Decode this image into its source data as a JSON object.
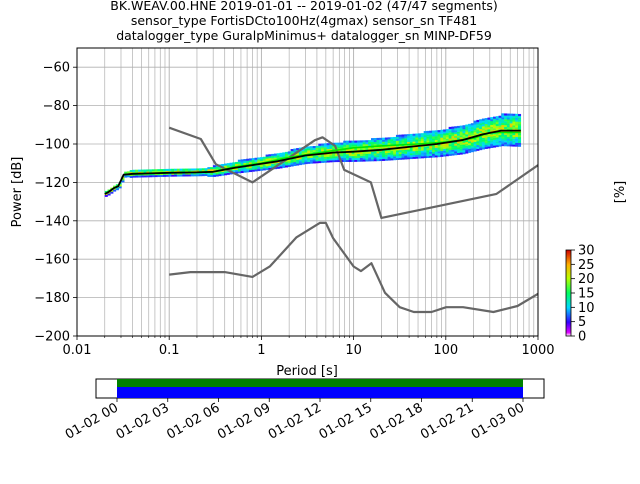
{
  "chart_data": {
    "type": "heatmap",
    "title_lines": [
      "BK.WEAV.00.HNE   2019-01-01 -- 2019-01-02  (47/47 segments)",
      "sensor_type FortisDCto100Hz(4gmax) sensor_sn TF481",
      "datalogger_type GuralpMinimus+ datalogger_sn MINP-DF59"
    ],
    "xlabel": "Period [s]",
    "ylabel": "Power [dB]",
    "colorbar_label": "[%]",
    "xscale": "log",
    "xlim": [
      0.01,
      1000
    ],
    "ylim": [
      -200,
      -50
    ],
    "grid": true,
    "x_tick_labels": [
      "0.01",
      "0.1",
      "1",
      "10",
      "100",
      "1000"
    ],
    "x_tick_values": [
      0.01,
      0.1,
      1,
      10,
      100,
      1000
    ],
    "y_tick_values": [
      -60,
      -80,
      -100,
      -120,
      -140,
      -160,
      -180,
      -200
    ],
    "y_tick_labels": [
      "−60",
      "−80",
      "−100",
      "−120",
      "−140",
      "−160",
      "−180",
      "−200"
    ],
    "colorbar_ticks": [
      "0",
      "5",
      "10",
      "15",
      "20",
      "25",
      "30"
    ],
    "colorbar_range": [
      0,
      30
    ],
    "nlnm": [
      [
        0.1,
        -168
      ],
      [
        0.17,
        -166.7
      ],
      [
        0.4,
        -166.7
      ],
      [
        0.8,
        -169.2
      ],
      [
        1.24,
        -163.7
      ],
      [
        2.4,
        -148.6
      ],
      [
        4.3,
        -141.1
      ],
      [
        5.0,
        -141.1
      ],
      [
        6.0,
        -149
      ],
      [
        10.0,
        -163.8
      ],
      [
        12.0,
        -166.2
      ],
      [
        15.6,
        -162.1
      ],
      [
        21.9,
        -177.5
      ],
      [
        31.6,
        -185
      ],
      [
        45.0,
        -187.5
      ],
      [
        70.0,
        -187.5
      ],
      [
        101.0,
        -185
      ],
      [
        154.0,
        -185
      ],
      [
        328.0,
        -187.5
      ],
      [
        600.0,
        -184.4
      ],
      [
        1000.0,
        -178
      ]
    ],
    "nhnm": [
      [
        0.1,
        -91.5
      ],
      [
        0.22,
        -97.4
      ],
      [
        0.32,
        -110.5
      ],
      [
        0.8,
        -120
      ],
      [
        3.8,
        -98
      ],
      [
        4.6,
        -96.5
      ],
      [
        6.3,
        -101
      ],
      [
        7.9,
        -113.5
      ],
      [
        15.4,
        -120
      ],
      [
        20.0,
        -138.5
      ],
      [
        354.8,
        -126
      ],
      [
        1000.0,
        -111
      ]
    ],
    "mean_curve": [
      [
        0.02,
        -126
      ],
      [
        0.022,
        -125
      ],
      [
        0.025,
        -123
      ],
      [
        0.028,
        -122
      ],
      [
        0.032,
        -116
      ],
      [
        0.04,
        -115.5
      ],
      [
        0.06,
        -115.3
      ],
      [
        0.1,
        -115
      ],
      [
        0.2,
        -114.8
      ],
      [
        0.3,
        -114.5
      ],
      [
        0.5,
        -112.5
      ],
      [
        0.8,
        -111
      ],
      [
        1.5,
        -109
      ],
      [
        3,
        -106
      ],
      [
        6,
        -104.5
      ],
      [
        10,
        -104
      ],
      [
        20,
        -103
      ],
      [
        40,
        -101.5
      ],
      [
        80,
        -100
      ],
      [
        150,
        -98
      ],
      [
        250,
        -95
      ],
      [
        400,
        -93
      ],
      [
        650,
        -93
      ]
    ],
    "mode_curve": [
      [
        0.02,
        -126
      ],
      [
        0.025,
        -123
      ],
      [
        0.028,
        -122
      ],
      [
        0.032,
        -116
      ],
      [
        0.1,
        -115
      ],
      [
        0.3,
        -114.5
      ],
      [
        0.5,
        -112
      ],
      [
        1,
        -110
      ],
      [
        2,
        -107
      ],
      [
        5,
        -104
      ],
      [
        10,
        -102
      ],
      [
        20,
        -101
      ],
      [
        50,
        -100
      ],
      [
        100,
        -99
      ],
      [
        200,
        -97
      ],
      [
        300,
        -94
      ],
      [
        650,
        -94
      ]
    ],
    "timeline": {
      "tick_labels": [
        "01-02 00",
        "01-02 03",
        "01-02 06",
        "01-02 09",
        "01-02 12",
        "01-02 15",
        "01-02 18",
        "01-02 21",
        "01-03 00"
      ],
      "colors": {
        "green": "#008000",
        "blue": "#0000ff"
      }
    }
  }
}
